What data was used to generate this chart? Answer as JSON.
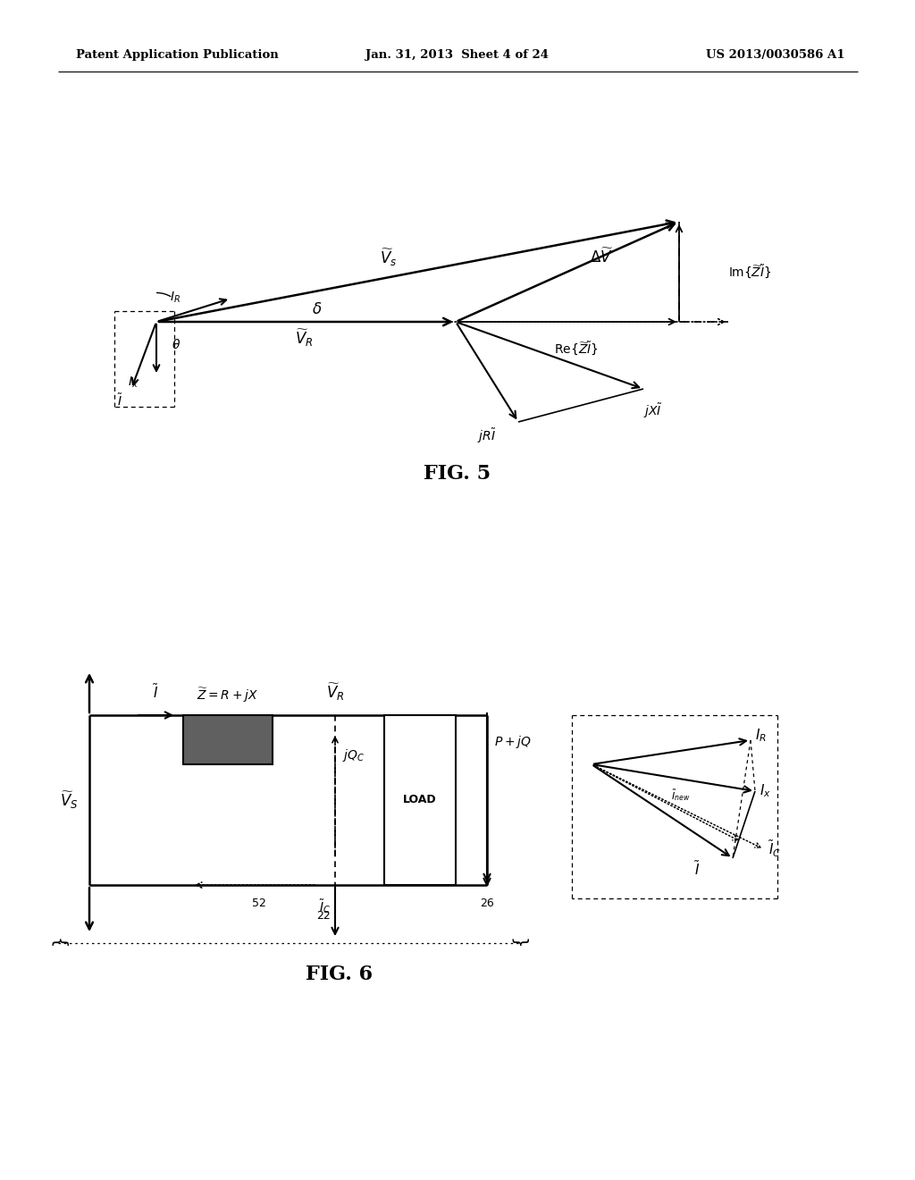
{
  "header_left": "Patent Application Publication",
  "header_middle": "Jan. 31, 2013  Sheet 4 of 24",
  "header_right": "US 2013/0030586 A1",
  "fig5_label": "FIG. 5",
  "fig6_label": "FIG. 6",
  "bg_color": "#ffffff"
}
